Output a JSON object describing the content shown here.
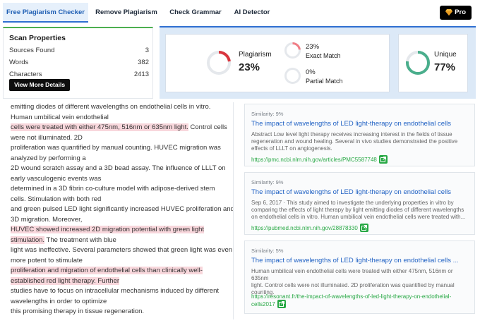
{
  "tabs": [
    {
      "label": "Free Plagiarism Checker",
      "active": true
    },
    {
      "label": "Remove Plagiarism"
    },
    {
      "label": "Check Grammar"
    },
    {
      "label": "AI Detector"
    }
  ],
  "pro": {
    "label": "Pro",
    "icon": "diamond-icon"
  },
  "scan": {
    "title": "Scan Properties",
    "rows": [
      {
        "label": "Sources Found",
        "value": "3"
      },
      {
        "label": "Words",
        "value": "382"
      },
      {
        "label": "Characters",
        "value": "2413"
      }
    ],
    "button": "View More Details"
  },
  "summary": {
    "plagiarism": {
      "label": "Plagiarism",
      "value": "23%",
      "fraction": 0.23
    },
    "exact": {
      "value": "23%",
      "label": "Exact Match",
      "fraction": 0.23
    },
    "partial": {
      "value": "0%",
      "label": "Partial Match",
      "fraction": 0
    },
    "unique": {
      "label": "Unique",
      "value": "77%",
      "fraction": 0.77
    }
  },
  "colors": {
    "plagiarism": "#d9363e",
    "unique": "#4aae8c",
    "accent": "#2f6fd1",
    "highlight": "#f8d7dc",
    "link": "#2162c4",
    "url": "#27a844"
  },
  "text_lines": [
    {
      "text": "emitting diodes of different wavelengths on endothelial cells in vitro."
    },
    {
      "text": "Human umbilical vein endothelial"
    },
    {
      "text": "cells were treated with either 475nm, 516nm or 635nm light.",
      "highlight": true,
      "after": " Control cells"
    },
    {
      "text": "were not illuminated. 2D"
    },
    {
      "text": "proliferation was quantified by manual counting. HUVEC migration was"
    },
    {
      "text": "analyzed by performing a"
    },
    {
      "text": "2D wound scratch assay and a 3D bead assay. The influence of LLLT on"
    },
    {
      "text": "early vasculogenic events was"
    },
    {
      "text": "determined in a 3D fibrin co-culture model with adipose-derived stem"
    },
    {
      "text": "cells. Stimulation with both red"
    },
    {
      "text": "and green pulsed LED light significantly increased HUVEC proliferation and"
    },
    {
      "text": "3D migration. Moreover,"
    },
    {
      "text": "HUVEC showed increased 2D migration potential with green light",
      "highlight": true
    },
    {
      "text": "stimulation.",
      "highlight": true,
      "after": " The treatment with blue"
    },
    {
      "text": "light was ineffective. Several parameters showed that green light was even"
    },
    {
      "text": "more potent to stimulate"
    },
    {
      "text": "proliferation and migration of endothelial cells than clinically well-",
      "highlight": true
    },
    {
      "text": "established red light therapy. Further",
      "highlight": true
    },
    {
      "text": "studies have to focus on intracellular mechanisms induced by different"
    },
    {
      "text": "wavelengths in order to optimize"
    },
    {
      "text": "this promising therapy in tissue regeneration."
    }
  ],
  "results": [
    {
      "similarity": "Similarity: 9%",
      "title": "The impact of wavelengths of LED light-therapy on endothelial cells",
      "desc": [
        "Abstract Low level light therapy receives increasing interest in the fields of tissue",
        "regeneration and wound healing. Several in vivo studies demonstrated the positive",
        "effects of LLLT on angiogenesis."
      ],
      "url": [
        "https://pmc.ncbi.nlm.nih.gov/articles/PMC5587748"
      ]
    },
    {
      "similarity": "Similarity: 9%",
      "title": "The impact of wavelengths of LED light-therapy on endothelial cells",
      "desc": [
        "Sep 6, 2017 · This study aimed to investigate the underlying properties in vitro by",
        "comparing the effects of light therapy by light emitting diodes of different wavelengths",
        "on endothelial cells in vitro. Human umbilical vein endothelial cells were treated with..."
      ],
      "url": [
        "https://pubmed.ncbi.nlm.nih.gov/28878330"
      ]
    },
    {
      "similarity": "Similarity: 5%",
      "title": "The impact of wavelengths of LED light-therapy on endothelial cells ...",
      "desc": [
        "Human umbilical vein endothelial cells were treated with either 475nm, 516nm or 635nm",
        "light. Control cells were not illuminated. 2D proliferation was quantified by manual",
        "counting."
      ],
      "url": [
        "https://resonant.fr/the-impact-of-wavelengths-of-led-light-therapy-on-endothelial-",
        "cells2017"
      ]
    }
  ]
}
